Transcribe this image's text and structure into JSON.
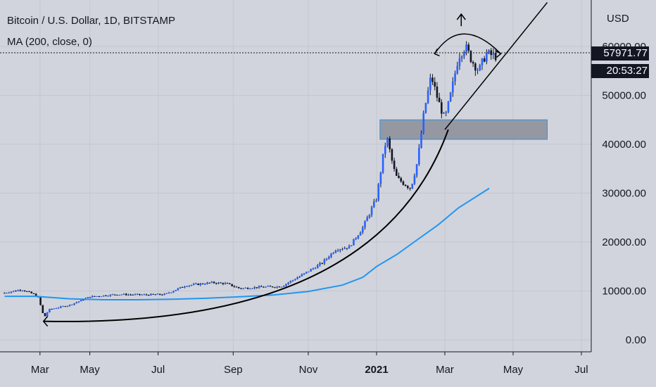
{
  "header": {
    "title": "Bitcoin / U.S. Dollar, 1D, BITSTAMP",
    "indicator": "MA (200, close, 0)"
  },
  "price_axis": {
    "currency": "USD",
    "last_price": "57971.77",
    "countdown": "20:53:27"
  },
  "colors": {
    "background": "#d1d4dc",
    "candle": "#2962ff",
    "wick": "#131722",
    "ma_line": "#2196f3",
    "annotation": "#000000",
    "zone_fill": "#9598a1",
    "zone_border": "#2196f3"
  },
  "chart_data": {
    "type": "candlestick",
    "title": "Bitcoin / U.S. Dollar, 1D, BITSTAMP",
    "ylim": [
      -2000,
      70000
    ],
    "x_ticks": [
      "Mar",
      "May",
      "Jul",
      "Sep",
      "Nov",
      "2021",
      "Mar",
      "May",
      "Jul"
    ],
    "y_ticks": [
      "0.00",
      "10000.00",
      "20000.00",
      "30000.00",
      "40000.00",
      "50000.00",
      "60000.00"
    ],
    "y_tick_values": [
      0,
      10000,
      20000,
      30000,
      40000,
      50000,
      60000
    ],
    "x_tick_positions": [
      0.07,
      0.8,
      1.8,
      2.9,
      4.0,
      5.0,
      6.0,
      7.0,
      8.0
    ],
    "price_path": [
      [
        -0.45,
        9600
      ],
      [
        -0.2,
        10300
      ],
      [
        0.0,
        9200
      ],
      [
        0.05,
        8500
      ],
      [
        0.1,
        6000
      ],
      [
        0.13,
        4500
      ],
      [
        0.2,
        6200
      ],
      [
        0.5,
        7100
      ],
      [
        0.8,
        8800
      ],
      [
        1.2,
        9300
      ],
      [
        1.6,
        9200
      ],
      [
        1.9,
        9300
      ],
      [
        2.2,
        11100
      ],
      [
        2.6,
        11700
      ],
      [
        2.8,
        11500
      ],
      [
        3.0,
        10500
      ],
      [
        3.3,
        10800
      ],
      [
        3.6,
        10900
      ],
      [
        3.9,
        13200
      ],
      [
        4.2,
        15700
      ],
      [
        4.4,
        18500
      ],
      [
        4.6,
        19000
      ],
      [
        4.8,
        23000
      ],
      [
        5.0,
        29000
      ],
      [
        5.1,
        38000
      ],
      [
        5.15,
        41500
      ],
      [
        5.25,
        35000
      ],
      [
        5.3,
        33000
      ],
      [
        5.5,
        31000
      ],
      [
        5.6,
        36500
      ],
      [
        5.7,
        47000
      ],
      [
        5.8,
        54000
      ],
      [
        5.9,
        49000
      ],
      [
        6.0,
        45000
      ],
      [
        6.1,
        51000
      ],
      [
        6.2,
        58000
      ],
      [
        6.3,
        60000
      ],
      [
        6.4,
        57000
      ],
      [
        6.5,
        55000
      ],
      [
        6.6,
        58500
      ],
      [
        6.75,
        58000
      ]
    ],
    "ma_200": [
      [
        -0.45,
        8900
      ],
      [
        0.0,
        8900
      ],
      [
        0.5,
        8400
      ],
      [
        1.0,
        8200
      ],
      [
        1.5,
        8200
      ],
      [
        2.0,
        8300
      ],
      [
        2.5,
        8500
      ],
      [
        3.0,
        8800
      ],
      [
        3.5,
        9200
      ],
      [
        4.0,
        9900
      ],
      [
        4.5,
        11200
      ],
      [
        4.8,
        12800
      ],
      [
        5.0,
        15000
      ],
      [
        5.3,
        17500
      ],
      [
        5.6,
        20500
      ],
      [
        5.9,
        23500
      ],
      [
        6.2,
        27000
      ],
      [
        6.65,
        31000
      ]
    ],
    "drawings": {
      "support_zone": {
        "x": [
          5.05,
          7.5
        ],
        "y": [
          41000,
          45000
        ]
      },
      "curve": [
        [
          0.12,
          3800
        ],
        [
          5.0,
          19000
        ],
        [
          6.05,
          43000
        ]
      ],
      "trend_line": [
        [
          6.0,
          43000
        ],
        [
          7.5,
          69000
        ]
      ],
      "arc": [
        [
          5.85,
          58500
        ],
        [
          6.24,
          63000
        ],
        [
          6.82,
          58500
        ]
      ]
    }
  }
}
